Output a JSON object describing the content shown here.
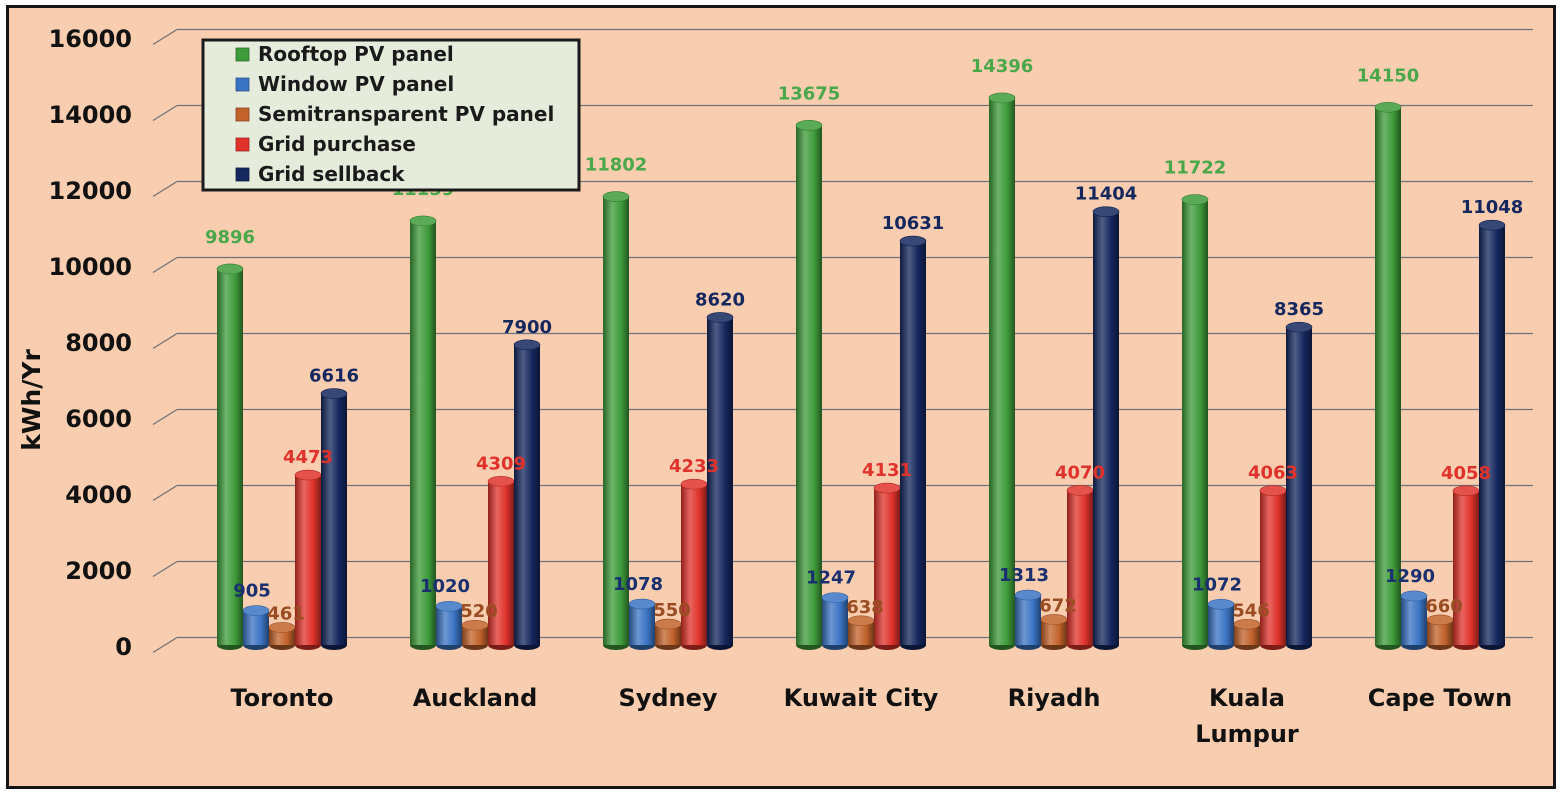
{
  "chart_data": {
    "type": "bar",
    "title": "",
    "xlabel": "",
    "ylabel": "kWh/Yr",
    "ylim": [
      0,
      16000
    ],
    "yticks": [
      "0",
      "2000",
      "4000",
      "6000",
      "8000",
      "10000",
      "12000",
      "14000",
      "16000"
    ],
    "grid": true,
    "legend_position": "top-left",
    "categories": [
      [
        "Toronto"
      ],
      [
        "Auckland"
      ],
      [
        "Sydney"
      ],
      [
        "Kuwait City"
      ],
      [
        "Riyadh"
      ],
      [
        "Kuala",
        "Lumpur"
      ],
      [
        "Cape Town"
      ]
    ],
    "series": [
      {
        "name": "Rooftop PV panel",
        "color": "#3e9b3a",
        "label_color": "#4aa84a",
        "values": [
          9896,
          11159,
          11802,
          13675,
          14396,
          11722,
          14150
        ]
      },
      {
        "name": "Window PV panel",
        "color": "#3b74c4",
        "label_color": "#1a2f6e",
        "values": [
          905,
          1020,
          1078,
          1247,
          1313,
          1072,
          1290
        ]
      },
      {
        "name": "Semitransparent PV panel",
        "color": "#c2622a",
        "label_color": "#9a4d22",
        "values": [
          461,
          520,
          550,
          638,
          672,
          546,
          660
        ]
      },
      {
        "name": "Grid purchase",
        "color": "#e0322b",
        "label_color": "#e0322b",
        "values": [
          4473,
          4309,
          4233,
          4131,
          4070,
          4063,
          4058
        ]
      },
      {
        "name": "Grid sellback",
        "color": "#14275e",
        "label_color": "#14275e",
        "values": [
          6616,
          7900,
          8620,
          10631,
          11404,
          8365,
          11048
        ]
      }
    ]
  }
}
